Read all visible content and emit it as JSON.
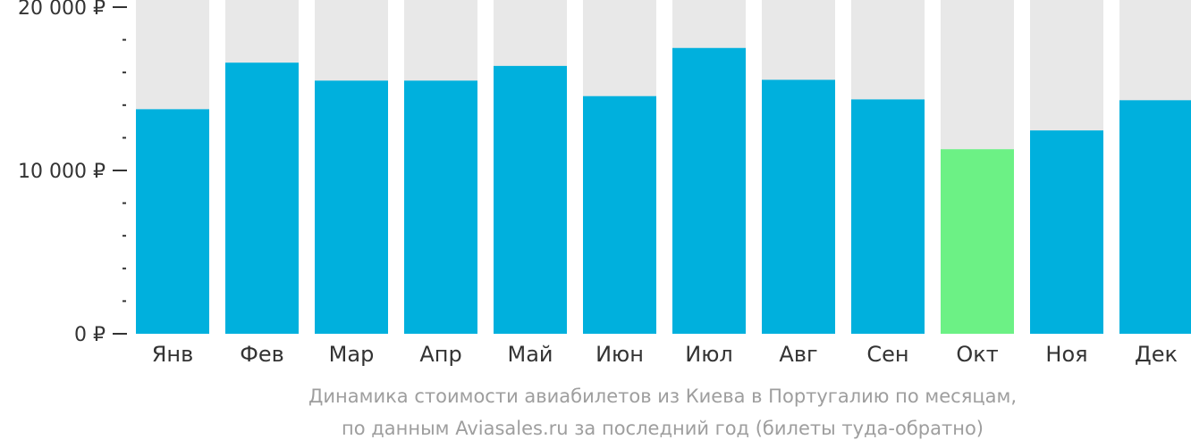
{
  "chart_data": {
    "type": "bar",
    "categories": [
      "Янв",
      "Фев",
      "Мар",
      "Апр",
      "Май",
      "Июн",
      "Июл",
      "Авг",
      "Сен",
      "Окт",
      "Ноя",
      "Дек"
    ],
    "values": [
      13750,
      16600,
      15500,
      15500,
      16400,
      14550,
      17500,
      15550,
      14350,
      11300,
      12450,
      14300
    ],
    "highlight_index": 9,
    "ylim": [
      0,
      20000
    ],
    "y_ticks": [
      {
        "value": 0,
        "label": "0 ₽"
      },
      {
        "value": 10000,
        "label": "10 000 ₽"
      },
      {
        "value": 20000,
        "label": "20 000 ₽"
      }
    ],
    "minor_tick_step": 2000,
    "colors": {
      "bar": "#00b0dd",
      "highlight": "#6cf185",
      "background_bar": "#e8e8e8",
      "axis": "#333333"
    },
    "caption": [
      "Динамика стоимости авиабилетов из Киева в Португалию по месяцам,",
      "по данным Aviasales.ru за последний год (билеты туда-обратно)"
    ]
  }
}
